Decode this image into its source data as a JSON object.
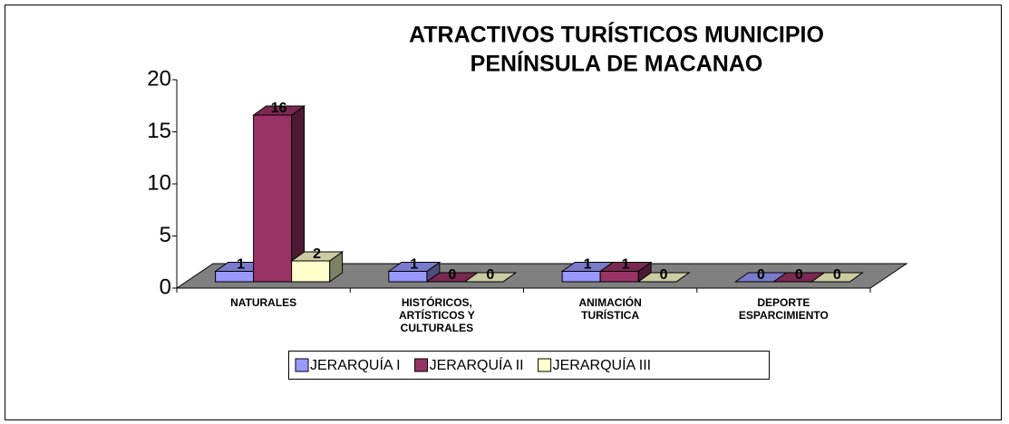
{
  "chart_data": {
    "type": "bar3d",
    "title": [
      "ATRACTIVOS TURÍSTICOS MUNICIPIO",
      "PENÍNSULA DE MACANAO"
    ],
    "categories": [
      "NATURALES",
      "HISTÓRICOS, ARTÍSTICOS Y CULTURALES",
      "ANIMACIÓN TURÍSTICA",
      "DEPORTE ESPARCIMIENTO"
    ],
    "series": [
      {
        "name": "JERARQUÍA I",
        "color": "#9999ff",
        "values": [
          1,
          1,
          1,
          0
        ]
      },
      {
        "name": "JERARQUÍA II",
        "color": "#993366",
        "values": [
          16,
          0,
          1,
          0
        ]
      },
      {
        "name": "JERARQUÍA III",
        "color": "#ffffcc",
        "values": [
          2,
          0,
          0,
          0
        ]
      }
    ],
    "ylim": [
      0,
      20
    ],
    "yticks": [
      0,
      5,
      10,
      15,
      20
    ],
    "legend": "bottom"
  }
}
